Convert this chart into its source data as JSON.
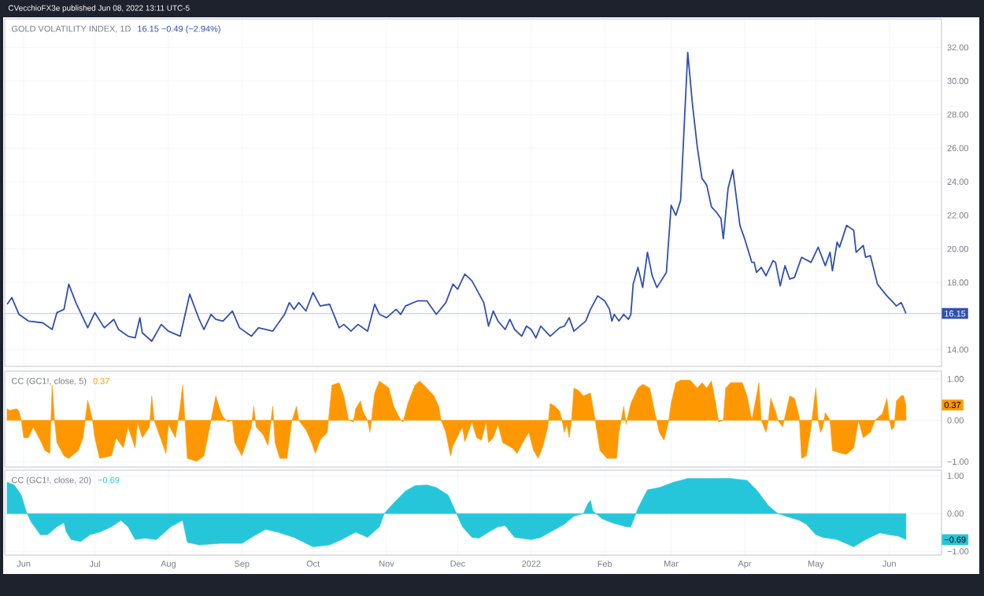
{
  "chart_data": [
    {
      "type": "line",
      "title": "GOLD VOLATILITY INDEX, 1D",
      "annotations": [
        "CVecchioFX3e published Jun 08, 2022 13:11 UTC-5",
        "16.15 −0.49 (−2.94%)"
      ],
      "xlim": [
        "2021-05-24",
        "2022-06-23"
      ],
      "ylim": [
        13,
        33.7
      ],
      "xticks": [
        {
          "value": "2021-06-01",
          "label": null
        },
        {
          "value": "2021-07-01",
          "label": null
        },
        {
          "value": "2021-08-01",
          "label": null
        },
        {
          "value": "2021-09-01",
          "label": null
        },
        {
          "value": "2021-10-01",
          "label": null
        },
        {
          "value": "2021-11-01",
          "label": null
        },
        {
          "value": "2021-12-01",
          "label": null
        },
        {
          "value": "2022-01-01",
          "label": null
        },
        {
          "value": "2022-02-01",
          "label": null
        },
        {
          "value": "2022-03-01",
          "label": null
        },
        {
          "value": "2022-04-01",
          "label": null
        },
        {
          "value": "2022-05-01",
          "label": null
        },
        {
          "value": "2022-06-01",
          "label": null
        }
      ],
      "yticks": [
        {
          "value": 14,
          "label": "14.00"
        },
        {
          "value": 16,
          "label": null
        },
        {
          "value": 18,
          "label": "18.00"
        },
        {
          "value": 20,
          "label": "20.00"
        },
        {
          "value": 22,
          "label": "22.00"
        },
        {
          "value": 24,
          "label": "24.00"
        },
        {
          "value": 26,
          "label": "26.00"
        },
        {
          "value": 28,
          "label": "28.00"
        },
        {
          "value": 30,
          "label": "30.00"
        },
        {
          "value": 32,
          "label": "32.00"
        }
      ],
      "tick_labels": "y",
      "grid": true,
      "ref_lines": [
        {
          "axis": "y",
          "value": 16.15,
          "label": "16.15",
          "color": "#b8c6e8"
        }
      ],
      "series": [
        {
          "color": "#3050b0",
          "x": [
            "2021-05-25",
            "2021-05-27",
            "2021-05-30",
            "2021-06-03",
            "2021-06-09",
            "2021-06-13",
            "2021-06-15",
            "2021-06-18",
            "2021-06-20",
            "2021-06-23",
            "2021-06-28",
            "2021-07-01",
            "2021-07-05",
            "2021-07-09",
            "2021-07-11",
            "2021-07-15",
            "2021-07-18",
            "2021-07-20",
            "2021-07-21",
            "2021-07-25",
            "2021-07-29",
            "2021-08-01",
            "2021-08-06",
            "2021-08-10",
            "2021-08-14",
            "2021-08-16",
            "2021-08-19",
            "2021-08-21",
            "2021-08-24",
            "2021-08-28",
            "2021-08-31",
            "2021-09-05",
            "2021-09-08",
            "2021-09-14",
            "2021-09-19",
            "2021-09-21",
            "2021-09-23",
            "2021-09-25",
            "2021-09-28",
            "2021-10-01",
            "2021-10-04",
            "2021-10-08",
            "2021-10-12",
            "2021-10-14",
            "2021-10-17",
            "2021-10-20",
            "2021-10-24",
            "2021-10-27",
            "2021-10-29",
            "2021-11-01",
            "2021-11-05",
            "2021-11-07",
            "2021-11-09",
            "2021-11-14",
            "2021-11-18",
            "2021-11-22",
            "2021-11-26",
            "2021-11-29",
            "2021-12-01",
            "2021-12-04",
            "2021-12-07",
            "2021-12-12",
            "2021-12-14",
            "2021-12-16",
            "2021-12-18",
            "2021-12-21",
            "2021-12-23",
            "2021-12-25",
            "2021-12-28",
            "2021-12-30",
            "2022-01-01",
            "2022-01-03",
            "2022-01-05",
            "2022-01-07",
            "2022-01-09",
            "2022-01-13",
            "2022-01-15",
            "2022-01-17",
            "2022-01-19",
            "2022-01-24",
            "2022-01-26",
            "2022-01-29",
            "2022-02-01",
            "2022-02-03",
            "2022-02-04",
            "2022-02-05",
            "2022-02-07",
            "2022-02-09",
            "2022-02-11",
            "2022-02-12",
            "2022-02-13",
            "2022-02-15",
            "2022-02-17",
            "2022-02-19",
            "2022-02-21",
            "2022-02-23",
            "2022-02-27",
            "2022-03-01",
            "2022-03-03",
            "2022-03-05",
            "2022-03-08",
            "2022-03-10",
            "2022-03-12",
            "2022-03-14",
            "2022-03-16",
            "2022-03-18",
            "2022-03-20",
            "2022-03-22",
            "2022-03-23",
            "2022-03-25",
            "2022-03-27",
            "2022-03-30",
            "2022-04-01",
            "2022-04-04",
            "2022-04-05",
            "2022-04-06",
            "2022-04-08",
            "2022-04-10",
            "2022-04-13",
            "2022-04-14",
            "2022-04-16",
            "2022-04-18",
            "2022-04-20",
            "2022-04-22",
            "2022-04-25",
            "2022-04-29",
            "2022-05-02",
            "2022-05-05",
            "2022-05-07",
            "2022-05-08",
            "2022-05-10",
            "2022-05-11",
            "2022-05-14",
            "2022-05-17",
            "2022-05-18",
            "2022-05-21",
            "2022-05-22",
            "2022-05-24",
            "2022-05-27",
            "2022-05-31",
            "2022-06-02",
            "2022-06-04",
            "2022-06-06",
            "2022-06-07",
            "2022-06-08"
          ],
          "values": [
            16.7,
            17.1,
            16.1,
            15.7,
            15.6,
            15.2,
            16.2,
            16.4,
            17.9,
            16.8,
            15.3,
            16.2,
            15.3,
            15.8,
            15.2,
            14.8,
            14.7,
            15.9,
            15.0,
            14.5,
            15.5,
            15.1,
            14.8,
            17.3,
            15.8,
            15.2,
            16.1,
            15.8,
            15.7,
            16.3,
            15.3,
            14.8,
            15.3,
            15.1,
            16.1,
            16.8,
            16.4,
            16.8,
            16.3,
            17.4,
            16.6,
            16.7,
            15.3,
            15.5,
            15.1,
            15.5,
            15.1,
            16.7,
            16.1,
            15.9,
            16.4,
            16.1,
            16.6,
            16.9,
            16.9,
            16.1,
            16.8,
            17.9,
            17.6,
            18.5,
            18.1,
            16.8,
            15.4,
            16.3,
            15.7,
            15.2,
            15.8,
            15.2,
            14.8,
            15.4,
            15.2,
            14.7,
            15.4,
            15.1,
            14.8,
            15.3,
            15.4,
            15.9,
            15.1,
            15.7,
            16.4,
            17.2,
            16.9,
            16.4,
            15.7,
            16.1,
            15.7,
            16.1,
            15.8,
            16.1,
            17.9,
            18.9,
            17.7,
            19.8,
            18.4,
            17.7,
            18.6,
            22.6,
            22.0,
            22.9,
            31.7,
            28.6,
            26.1,
            24.2,
            23.8,
            22.5,
            22.2,
            21.8,
            20.6,
            23.6,
            24.7,
            21.4,
            20.6,
            19.2,
            19.2,
            18.6,
            18.9,
            18.4,
            19.3,
            19.2,
            17.8,
            19.0,
            18.2,
            18.3,
            19.5,
            19.2,
            20.1,
            19.0,
            19.8,
            18.7,
            20.4,
            20.1,
            21.4,
            21.1,
            19.8,
            20.2,
            19.5,
            19.6,
            17.9,
            17.2,
            16.9,
            16.6,
            16.8,
            16.5,
            16.15
          ]
        }
      ]
    },
    {
      "type": "area",
      "title": "CC (GC1!, close, 5)",
      "annotations": [
        "0.37",
        "0.37"
      ],
      "xlim": [
        "2021-05-24",
        "2022-06-23"
      ],
      "xticks": [
        {
          "value": "2021-06-01",
          "label": null
        },
        {
          "value": "2021-07-01",
          "label": null
        },
        {
          "value": "2021-08-01",
          "label": null
        },
        {
          "value": "2021-09-01",
          "label": null
        },
        {
          "value": "2021-10-01",
          "label": null
        },
        {
          "value": "2021-11-01",
          "label": null
        },
        {
          "value": "2021-12-01",
          "label": null
        },
        {
          "value": "2022-01-01",
          "label": null
        },
        {
          "value": "2022-02-01",
          "label": null
        },
        {
          "value": "2022-03-01",
          "label": null
        },
        {
          "value": "2022-04-01",
          "label": null
        },
        {
          "value": "2022-05-01",
          "label": null
        },
        {
          "value": "2022-06-01",
          "label": null
        }
      ],
      "ylim": [
        -1.13,
        1.19
      ],
      "yticks": [
        {
          "value": -1,
          "label": "−1.00"
        },
        {
          "value": 0,
          "label": "0.00"
        },
        {
          "value": 1,
          "label": "1.00"
        }
      ],
      "tick_labels": "y",
      "grid": true,
      "series": [
        {
          "color": "#ff9800",
          "x": [
            "2021-05-25",
            "2021-05-26",
            "2021-05-29",
            "2021-05-30",
            "2021-05-31",
            "2021-06-01",
            "2021-06-03",
            "2021-06-05",
            "2021-06-08",
            "2021-06-10",
            "2021-06-12",
            "2021-06-13",
            "2021-06-14",
            "2021-06-15",
            "2021-06-18",
            "2021-06-20",
            "2021-06-24",
            "2021-06-26",
            "2021-06-28",
            "2021-06-30",
            "2021-07-01",
            "2021-07-03",
            "2021-07-08",
            "2021-07-10",
            "2021-07-13",
            "2021-07-15",
            "2021-07-18",
            "2021-07-19",
            "2021-07-21",
            "2021-07-24",
            "2021-07-25",
            "2021-07-26",
            "2021-07-29",
            "2021-07-31",
            "2021-08-01",
            "2021-08-04",
            "2021-08-06",
            "2021-08-07",
            "2021-08-08",
            "2021-08-09",
            "2021-08-13",
            "2021-08-16",
            "2021-08-19",
            "2021-08-21",
            "2021-08-23",
            "2021-08-24",
            "2021-08-26",
            "2021-08-28",
            "2021-08-29",
            "2021-09-01",
            "2021-09-05",
            "2021-09-06",
            "2021-09-07",
            "2021-09-10",
            "2021-09-12",
            "2021-09-14",
            "2021-09-15",
            "2021-09-17",
            "2021-09-20",
            "2021-09-22",
            "2021-09-24",
            "2021-09-25",
            "2021-09-28",
            "2021-09-30",
            "2021-10-02",
            "2021-10-04",
            "2021-10-07",
            "2021-10-09",
            "2021-10-12",
            "2021-10-14",
            "2021-10-16",
            "2021-10-18",
            "2021-10-19",
            "2021-10-21",
            "2021-10-22",
            "2021-10-24",
            "2021-10-25",
            "2021-10-27",
            "2021-10-29",
            "2021-11-02",
            "2021-11-04",
            "2021-11-07",
            "2021-11-08",
            "2021-11-10",
            "2021-11-13",
            "2021-11-15",
            "2021-11-18",
            "2021-11-21",
            "2021-11-23",
            "2021-11-24",
            "2021-11-26",
            "2021-11-28",
            "2021-11-29",
            "2021-12-03",
            "2021-12-04",
            "2021-12-07",
            "2021-12-09",
            "2021-12-11",
            "2021-12-13",
            "2021-12-14",
            "2021-12-16",
            "2021-12-18",
            "2021-12-20",
            "2021-12-24",
            "2021-12-26",
            "2021-12-29",
            "2021-12-31",
            "2022-01-02",
            "2022-01-04",
            "2022-01-06",
            "2022-01-08",
            "2022-01-09",
            "2022-01-11",
            "2022-01-13",
            "2022-01-14",
            "2022-01-15",
            "2022-01-16",
            "2022-01-17",
            "2022-01-18",
            "2022-01-19",
            "2022-01-21",
            "2022-01-23",
            "2022-01-26",
            "2022-01-28",
            "2022-01-30",
            "2022-02-02",
            "2022-02-06",
            "2022-02-07",
            "2022-02-09",
            "2022-02-10",
            "2022-02-12",
            "2022-02-15",
            "2022-02-17",
            "2022-02-20",
            "2022-02-22",
            "2022-02-24",
            "2022-02-26",
            "2022-02-28",
            "2022-03-01",
            "2022-03-03",
            "2022-03-05",
            "2022-03-09",
            "2022-03-12",
            "2022-03-14",
            "2022-03-16",
            "2022-03-18",
            "2022-03-20",
            "2022-03-21",
            "2022-03-23",
            "2022-03-24",
            "2022-03-26",
            "2022-03-31",
            "2022-04-02",
            "2022-04-04",
            "2022-04-06",
            "2022-04-07",
            "2022-04-08",
            "2022-04-10",
            "2022-04-11",
            "2022-04-12",
            "2022-04-14",
            "2022-04-15",
            "2022-04-17",
            "2022-04-20",
            "2022-04-22",
            "2022-04-24",
            "2022-04-25",
            "2022-04-27",
            "2022-04-29",
            "2022-05-01",
            "2022-05-02",
            "2022-05-03",
            "2022-05-04",
            "2022-05-05",
            "2022-05-07",
            "2022-05-08",
            "2022-05-12",
            "2022-05-14",
            "2022-05-17",
            "2022-05-19",
            "2022-05-21",
            "2022-05-24",
            "2022-05-26",
            "2022-05-28",
            "2022-05-29",
            "2022-05-31",
            "2022-06-01",
            "2022-06-02",
            "2022-06-03",
            "2022-06-04",
            "2022-06-06",
            "2022-06-07",
            "2022-06-08"
          ],
          "values": [
            0.28,
            0.24,
            0.28,
            0.22,
            0,
            -0.42,
            -0.42,
            -0.16,
            -0.48,
            -0.73,
            -0.8,
            0.85,
            0,
            -0.54,
            -0.86,
            -0.92,
            -0.73,
            -0.42,
            0.49,
            0,
            -0.42,
            -0.92,
            -0.86,
            -0.42,
            -0.67,
            -0.16,
            -0.67,
            -0.04,
            -0.42,
            -0.16,
            0.59,
            0,
            -0.48,
            -0.8,
            -0.1,
            -0.42,
            0.34,
            0.85,
            0,
            -0.92,
            -0.99,
            -0.86,
            0,
            0.59,
            0.22,
            0.09,
            -0.04,
            0,
            -0.54,
            -0.86,
            -0.16,
            0.34,
            -0.16,
            -0.35,
            -0.61,
            0.34,
            -0.54,
            -0.92,
            -0.92,
            -0.04,
            0.34,
            0,
            -0.23,
            -0.48,
            -0.8,
            -0.48,
            -0.29,
            0.85,
            0.91,
            0.59,
            0,
            -0.04,
            0.28,
            0.47,
            0.22,
            0,
            -0.29,
            0.66,
            0.95,
            0.78,
            0.34,
            0,
            -0.04,
            0.41,
            0.85,
            0.95,
            0.78,
            0.59,
            0.34,
            0,
            -0.29,
            -0.86,
            -0.61,
            -0.16,
            -0.52,
            -0.04,
            -0.42,
            -0.48,
            -0.04,
            -0.54,
            -0.42,
            -0.1,
            -0.54,
            -0.67,
            -0.8,
            -0.48,
            -0.29,
            -0.73,
            -0.92,
            -0.61,
            -0.16,
            0.41,
            0.34,
            0.22,
            0,
            -0.29,
            -0.1,
            -0.42,
            0,
            0.78,
            0.72,
            0.59,
            0.66,
            0,
            -0.73,
            -0.92,
            -0.92,
            -0.29,
            0.34,
            -0.1,
            0.41,
            0.78,
            0.87,
            0.78,
            0.22,
            -0.29,
            -0.48,
            0,
            0.41,
            0.91,
            0.97,
            0.97,
            0.78,
            0.91,
            0.78,
            0.95,
            0.34,
            -0.04,
            0,
            0.78,
            0.91,
            0.91,
            0.59,
            0,
            0.59,
            0.91,
            0,
            -0.29,
            0,
            0.53,
            0.22,
            0,
            -0.16,
            0.59,
            0.53,
            0.09,
            -0.92,
            -0.86,
            -0.16,
            0.78,
            0,
            -0.29,
            -0.16,
            0.19,
            0,
            -0.73,
            -0.8,
            -0.82,
            -0.67,
            0,
            -0.42,
            -0.29,
            0,
            0.11,
            0.15,
            0.53,
            0,
            -0.23,
            -0.16,
            0.47,
            0.59,
            0.6,
            0.37
          ]
        }
      ]
    },
    {
      "type": "area",
      "title": "CC (GC1!, close, 20)",
      "annotations": [
        "−0.69",
        "−0.69"
      ],
      "xlim": [
        "2021-05-24",
        "2022-06-23"
      ],
      "xticks": [
        {
          "value": "2021-06-01",
          "label": "Jun"
        },
        {
          "value": "2021-07-01",
          "label": "Jul"
        },
        {
          "value": "2021-08-01",
          "label": "Aug"
        },
        {
          "value": "2021-09-01",
          "label": "Sep"
        },
        {
          "value": "2021-10-01",
          "label": "Oct"
        },
        {
          "value": "2021-11-01",
          "label": "Nov"
        },
        {
          "value": "2021-12-01",
          "label": "Dec"
        },
        {
          "value": "2022-01-01",
          "label": "2022"
        },
        {
          "value": "2022-02-01",
          "label": "Feb"
        },
        {
          "value": "2022-03-01",
          "label": "Mar"
        },
        {
          "value": "2022-04-01",
          "label": "Apr"
        },
        {
          "value": "2022-05-01",
          "label": "May"
        },
        {
          "value": "2022-06-01",
          "label": "Jun"
        }
      ],
      "ylim": [
        -1.1,
        1.15
      ],
      "yticks": [
        {
          "value": -1,
          "label": "−1.00"
        },
        {
          "value": 0,
          "label": "0.00"
        },
        {
          "value": 1,
          "label": "1.00"
        }
      ],
      "grid": true,
      "series": [
        {
          "color": "#26c6da",
          "x": [
            "2021-05-25",
            "2021-05-28",
            "2021-05-31",
            "2021-06-02",
            "2021-06-04",
            "2021-06-08",
            "2021-06-11",
            "2021-06-15",
            "2021-06-18",
            "2021-06-19",
            "2021-06-21",
            "2021-06-25",
            "2021-06-29",
            "2021-07-03",
            "2021-07-08",
            "2021-07-12",
            "2021-07-15",
            "2021-07-18",
            "2021-07-22",
            "2021-07-27",
            "2021-08-02",
            "2021-08-07",
            "2021-08-09",
            "2021-08-14",
            "2021-08-23",
            "2021-09-01",
            "2021-09-07",
            "2021-09-11",
            "2021-09-16",
            "2021-09-23",
            "2021-10-01",
            "2021-10-08",
            "2021-10-13",
            "2021-10-19",
            "2021-10-24",
            "2021-10-29",
            "2021-10-31",
            "2021-11-04",
            "2021-11-09",
            "2021-11-13",
            "2021-11-18",
            "2021-11-22",
            "2021-11-27",
            "2021-11-30",
            "2021-12-03",
            "2021-12-07",
            "2021-12-10",
            "2021-12-14",
            "2021-12-18",
            "2021-12-21",
            "2021-12-25",
            "2022-01-01",
            "2022-01-05",
            "2022-01-09",
            "2022-01-15",
            "2022-01-19",
            "2022-01-23",
            "2022-01-25",
            "2022-01-26",
            "2022-01-27",
            "2022-01-31",
            "2022-02-04",
            "2022-02-10",
            "2022-02-12",
            "2022-02-15",
            "2022-02-19",
            "2022-02-24",
            "2022-03-02",
            "2022-03-08",
            "2022-03-17",
            "2022-03-26",
            "2022-04-02",
            "2022-04-06",
            "2022-04-11",
            "2022-04-15",
            "2022-04-20",
            "2022-04-24",
            "2022-04-27",
            "2022-05-01",
            "2022-05-04",
            "2022-05-10",
            "2022-05-17",
            "2022-05-22",
            "2022-05-28",
            "2022-06-01",
            "2022-06-05",
            "2022-06-08"
          ],
          "values": [
            0.83,
            0.76,
            0.49,
            0.07,
            -0.21,
            -0.56,
            -0.56,
            -0.35,
            -0.24,
            -0.49,
            -0.69,
            -0.74,
            -0.56,
            -0.49,
            -0.35,
            -0.18,
            -0.35,
            -0.69,
            -0.65,
            -0.69,
            -0.35,
            -0.18,
            -0.76,
            -0.83,
            -0.79,
            -0.79,
            -0.56,
            -0.42,
            -0.49,
            -0.63,
            -0.88,
            -0.83,
            -0.69,
            -0.49,
            -0.63,
            -0.35,
            0,
            0.28,
            0.6,
            0.74,
            0.76,
            0.69,
            0.49,
            0.07,
            -0.35,
            -0.63,
            -0.65,
            -0.49,
            -0.35,
            -0.32,
            -0.63,
            -0.69,
            -0.63,
            -0.49,
            -0.28,
            -0.07,
            0,
            0.28,
            0.35,
            0.07,
            -0.14,
            -0.24,
            -0.35,
            -0.35,
            0.14,
            0.63,
            0.69,
            0.83,
            0.93,
            0.93,
            0.93,
            0.88,
            0.63,
            0.21,
            0,
            -0.1,
            -0.18,
            -0.28,
            -0.56,
            -0.63,
            -0.69,
            -0.88,
            -0.69,
            -0.51,
            -0.56,
            -0.6,
            -0.69
          ]
        }
      ]
    }
  ]
}
